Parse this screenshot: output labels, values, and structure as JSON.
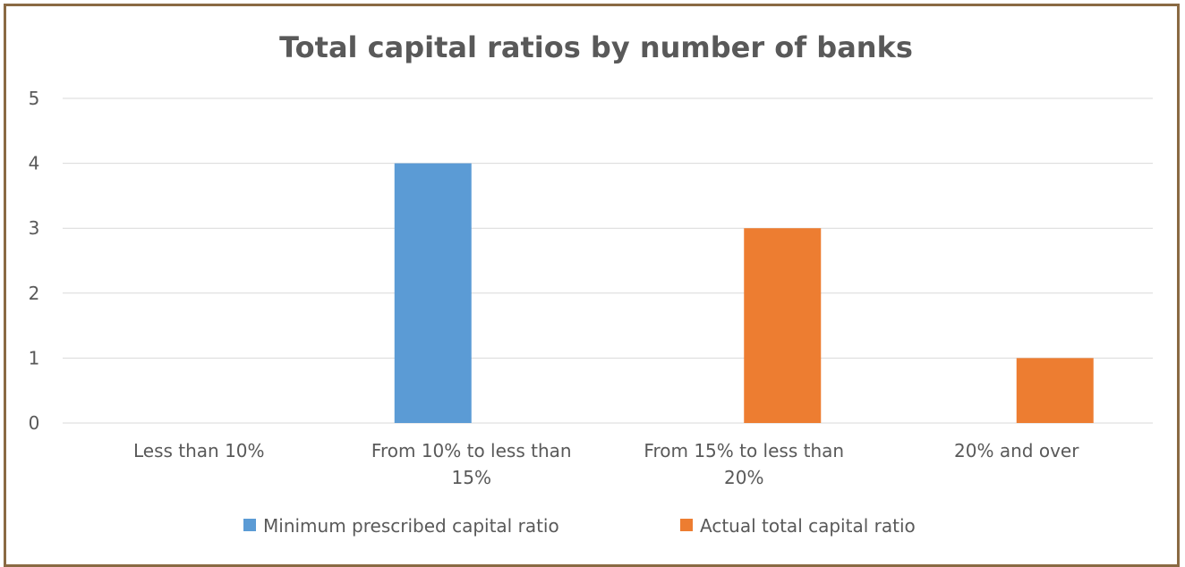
{
  "chart_data": {
    "type": "bar",
    "title": "Total capital ratios by number of banks",
    "categories": [
      [
        "Less than 10%"
      ],
      [
        "From 10% to less than",
        "15%"
      ],
      [
        "From 15% to less than",
        "20%"
      ],
      [
        "20% and over"
      ]
    ],
    "series": [
      {
        "name": "Minimum prescribed capital ratio",
        "color": "#5b9bd5",
        "values": [
          0,
          4,
          0,
          0
        ]
      },
      {
        "name": "Actual total capital ratio",
        "color": "#ed7d31",
        "values": [
          0,
          0,
          3,
          1
        ]
      }
    ],
    "ylim": [
      0,
      5
    ],
    "yticks": [
      0,
      1,
      2,
      3,
      4,
      5
    ],
    "grid": true,
    "legend": "bottom"
  }
}
